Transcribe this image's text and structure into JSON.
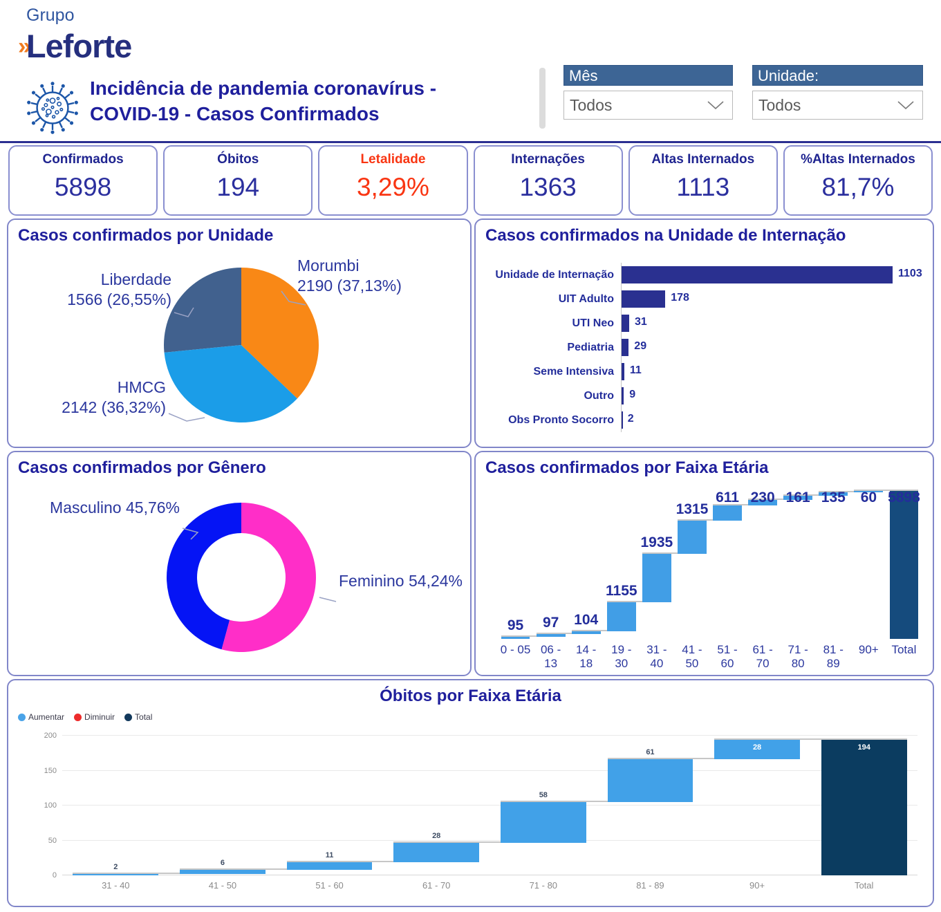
{
  "logo": {
    "grupo": "Grupo",
    "name": "Leforte",
    "chevron": "»"
  },
  "header": {
    "title_line1": "Incidência de pandemia coronavírus -",
    "title_line2": "COVID-19 -   Casos Confirmados"
  },
  "filters": [
    {
      "label": "Mês",
      "value": "Todos"
    },
    {
      "label": "Unidade:",
      "value": "Todos"
    }
  ],
  "kpis": [
    {
      "label": "Confirmados",
      "value": "5898"
    },
    {
      "label": "Óbitos",
      "value": "194"
    },
    {
      "label": "Letalidade",
      "value": "3,29%",
      "accent": "#F93512"
    },
    {
      "label": "Internações",
      "value": "1363"
    },
    {
      "label": "Altas Internados",
      "value": "1113"
    },
    {
      "label": "%Altas Internados",
      "value": "81,7%"
    }
  ],
  "panels": {
    "unidade": {
      "title": "Casos confirmados por Unidade"
    },
    "internacao": {
      "title": "Casos confirmados na Unidade de Internação"
    },
    "genero": {
      "title": "Casos confirmados por Gênero"
    },
    "faixa": {
      "title": "Casos confirmados por Faixa Etária"
    },
    "obitos": {
      "title": "Óbitos por Faixa Etária"
    }
  },
  "chart_data": [
    {
      "id": "unidade_pie",
      "type": "pie",
      "title": "Casos confirmados por Unidade",
      "start": "top",
      "direction": "clockwise",
      "slices": [
        {
          "label": "Morumbi",
          "value": 2190,
          "pct_text": "37,13%",
          "value_text": "2190 (37,13%)",
          "color": "#F98816"
        },
        {
          "label": "HMCG",
          "value": 2142,
          "pct_text": "36,32%",
          "value_text": "2142 (36,32%)",
          "color": "#1B9DE8"
        },
        {
          "label": "Liberdade",
          "value": 1566,
          "pct_text": "26,55%",
          "value_text": "1566 (26,55%)",
          "color": "#41618E"
        }
      ]
    },
    {
      "id": "internacao_bar",
      "type": "bar",
      "orientation": "horizontal",
      "title": "Casos confirmados na Unidade de Internação",
      "categories": [
        "Unidade de Internação",
        "UIT Adulto",
        "UTI Neo",
        "Pediatria",
        "Seme Intensiva",
        "Outro",
        "Obs Pronto Socorro"
      ],
      "values": [
        1103,
        178,
        31,
        29,
        11,
        9,
        2
      ],
      "bar_color": "#2A3090"
    },
    {
      "id": "genero_donut",
      "type": "pie",
      "donut": true,
      "title": "Casos confirmados por Gênero",
      "start": "top",
      "direction": "clockwise",
      "slices": [
        {
          "label": "Feminino",
          "value": 54.24,
          "display": "Feminino 54,24%",
          "color": "#FF2EC8"
        },
        {
          "label": "Masculino",
          "value": 45.76,
          "display": "Masculino 45,76%",
          "color": "#0514F5"
        }
      ]
    },
    {
      "id": "faixa_waterfall",
      "type": "bar",
      "subtype": "waterfall",
      "title": "Casos confirmados por Faixa Etária",
      "categories": [
        "0 - 05",
        "06 - 13",
        "14 - 18",
        "19 - 30",
        "31 - 40",
        "41 - 50",
        "51 - 60",
        "61 - 70",
        "71 - 80",
        "81 - 89",
        "90+"
      ],
      "values": [
        95,
        97,
        104,
        1155,
        1935,
        1315,
        611,
        230,
        161,
        135,
        60
      ],
      "total_label": "Total",
      "total": 5898,
      "ylim": [
        0,
        5898
      ],
      "grid": false,
      "colors": {
        "increase": "#419EE6",
        "total": "#154B7D"
      }
    },
    {
      "id": "obitos_waterfall",
      "type": "bar",
      "subtype": "waterfall",
      "title": "Óbitos por Faixa Etária",
      "categories": [
        "31 - 40",
        "41 - 50",
        "51 - 60",
        "61 - 70",
        "71 - 80",
        "81 - 89",
        "90+"
      ],
      "values": [
        2,
        6,
        11,
        28,
        58,
        61,
        28
      ],
      "total_label": "Total",
      "total": 194,
      "ylim": [
        0,
        200
      ],
      "yticks": [
        0,
        50,
        100,
        150,
        200
      ],
      "grid": true,
      "label_inside": [
        "90+",
        "Total"
      ],
      "colors": {
        "increase": "#41A1E8",
        "total": "#0B3C60"
      },
      "legend_position": "top-left",
      "legend": [
        {
          "label": "Aumentar",
          "color": "#4AA3E8"
        },
        {
          "label": "Diminuir",
          "color": "#ED2B2B"
        },
        {
          "label": "Total",
          "color": "#12395C"
        }
      ]
    }
  ]
}
